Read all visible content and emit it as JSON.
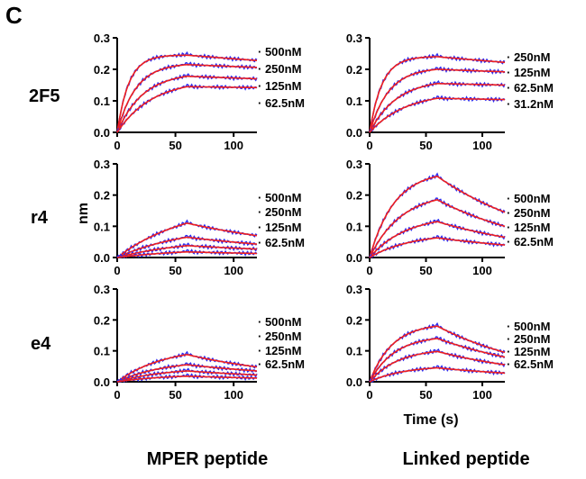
{
  "figure": {
    "panel_letter": "C",
    "y_axis_label": "nm",
    "x_axis_label": "Time (s)",
    "column_labels": [
      "MPER peptide",
      "Linked peptide"
    ],
    "row_labels": [
      "2F5",
      "r4",
      "e4"
    ],
    "colors": {
      "measured": "#2b2bf0",
      "fit": "#ee1f1f",
      "axis": "#000000"
    }
  },
  "chart_data": [
    {
      "type": "line",
      "row": "2F5",
      "column": "MPER peptide",
      "xlim": [
        0,
        120
      ],
      "ylim": [
        0,
        0.3
      ],
      "xticks": [
        0,
        50,
        100
      ],
      "yticks": [
        0.0,
        0.1,
        0.2,
        0.3
      ],
      "association_end": 60,
      "series": [
        {
          "name": "500nM",
          "max": 0.245,
          "final": 0.228,
          "tau": 10
        },
        {
          "name": "250nM",
          "max": 0.215,
          "final": 0.206,
          "tau": 16
        },
        {
          "name": "125nM",
          "max": 0.178,
          "final": 0.17,
          "tau": 22
        },
        {
          "name": "62.5nM",
          "max": 0.145,
          "final": 0.142,
          "tau": 30
        }
      ]
    },
    {
      "type": "line",
      "row": "2F5",
      "column": "Linked peptide",
      "xlim": [
        0,
        120
      ],
      "ylim": [
        0,
        0.3
      ],
      "xticks": [
        0,
        50,
        100
      ],
      "yticks": [
        0.0,
        0.1,
        0.2,
        0.3
      ],
      "association_end": 60,
      "series": [
        {
          "name": "250nM",
          "max": 0.24,
          "final": 0.222,
          "tau": 11
        },
        {
          "name": "125nM",
          "max": 0.2,
          "final": 0.192,
          "tau": 17
        },
        {
          "name": "62.5nM",
          "max": 0.155,
          "final": 0.15,
          "tau": 24
        },
        {
          "name": "31.2nM",
          "max": 0.108,
          "final": 0.104,
          "tau": 32
        }
      ]
    },
    {
      "type": "line",
      "row": "r4",
      "column": "MPER peptide",
      "xlim": [
        0,
        120
      ],
      "ylim": [
        0,
        0.3
      ],
      "xticks": [
        0,
        50,
        100
      ],
      "yticks": [
        0.0,
        0.1,
        0.2,
        0.3
      ],
      "association_end": 60,
      "series": [
        {
          "name": "500nM",
          "max": 0.11,
          "final": 0.07,
          "tau": 60
        },
        {
          "name": "250nM",
          "max": 0.065,
          "final": 0.043,
          "tau": 60
        },
        {
          "name": "125nM",
          "max": 0.038,
          "final": 0.027,
          "tau": 60
        },
        {
          "name": "62.5nM",
          "max": 0.018,
          "final": 0.013,
          "tau": 60
        }
      ]
    },
    {
      "type": "line",
      "row": "r4",
      "column": "Linked peptide",
      "xlim": [
        0,
        120
      ],
      "ylim": [
        0,
        0.3
      ],
      "xticks": [
        0,
        50,
        100
      ],
      "yticks": [
        0.0,
        0.1,
        0.2,
        0.3
      ],
      "association_end": 60,
      "series": [
        {
          "name": "500nM",
          "max": 0.26,
          "final": 0.145,
          "tau": 22
        },
        {
          "name": "250nM",
          "max": 0.185,
          "final": 0.1,
          "tau": 28
        },
        {
          "name": "125nM",
          "max": 0.115,
          "final": 0.065,
          "tau": 32
        },
        {
          "name": "62.5nM",
          "max": 0.063,
          "final": 0.04,
          "tau": 36
        }
      ]
    },
    {
      "type": "line",
      "row": "e4",
      "column": "MPER peptide",
      "xlim": [
        0,
        120
      ],
      "ylim": [
        0,
        0.3
      ],
      "xticks": [
        0,
        50,
        100
      ],
      "yticks": [
        0.0,
        0.1,
        0.2,
        0.3
      ],
      "association_end": 60,
      "series": [
        {
          "name": "500nM",
          "max": 0.088,
          "final": 0.048,
          "tau": 40
        },
        {
          "name": "250nM",
          "max": 0.055,
          "final": 0.035,
          "tau": 40
        },
        {
          "name": "125nM",
          "max": 0.035,
          "final": 0.022,
          "tau": 40
        },
        {
          "name": "62.5nM",
          "max": 0.018,
          "final": 0.012,
          "tau": 40
        }
      ]
    },
    {
      "type": "line",
      "row": "e4",
      "column": "Linked peptide",
      "xlim": [
        0,
        120
      ],
      "ylim": [
        0,
        0.3
      ],
      "xticks": [
        0,
        50,
        100
      ],
      "yticks": [
        0.0,
        0.1,
        0.2,
        0.3
      ],
      "association_end": 60,
      "series": [
        {
          "name": "500nM",
          "max": 0.18,
          "final": 0.095,
          "tau": 20
        },
        {
          "name": "250nM",
          "max": 0.14,
          "final": 0.08,
          "tau": 22
        },
        {
          "name": "125nM",
          "max": 0.098,
          "final": 0.055,
          "tau": 25
        },
        {
          "name": "62.5nM",
          "max": 0.045,
          "final": 0.028,
          "tau": 30
        }
      ]
    }
  ]
}
